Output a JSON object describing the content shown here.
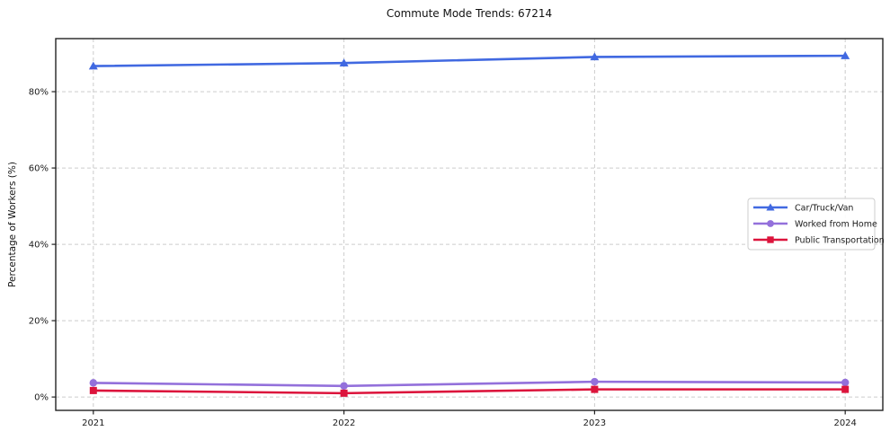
{
  "chart_data": {
    "type": "line",
    "title": "Commute Mode Trends: 67214",
    "xlabel": "",
    "ylabel": "Percentage of Workers (%)",
    "x": [
      2021,
      2022,
      2023,
      2024
    ],
    "x_tick_labels": [
      "2021",
      "2022",
      "2023",
      "2024"
    ],
    "y_ticks": [
      0,
      20,
      40,
      60,
      80
    ],
    "y_tick_labels": [
      "0%",
      "20%",
      "40%",
      "60%",
      "80%"
    ],
    "xlim": [
      2020.85,
      2024.15
    ],
    "ylim": [
      -3.5,
      93.9
    ],
    "grid": "dashed, both axes",
    "legend_position": "center-right",
    "series": [
      {
        "name": "Car/Truck/Van",
        "color": "#4169E1",
        "marker": "triangle",
        "values": [
          86.7,
          87.5,
          89.1,
          89.4
        ]
      },
      {
        "name": "Worked from Home",
        "color": "#9370DB",
        "marker": "circle",
        "values": [
          3.7,
          2.9,
          4.0,
          3.8
        ]
      },
      {
        "name": "Public Transportation",
        "color": "#DC143C",
        "marker": "square",
        "values": [
          1.7,
          1.0,
          2.0,
          2.0
        ]
      }
    ],
    "colors": {
      "background": "#ffffff",
      "grid": "#cccccc",
      "spine": "#222222",
      "text": "#1a1a1a",
      "legend_border": "#cccccc"
    }
  }
}
